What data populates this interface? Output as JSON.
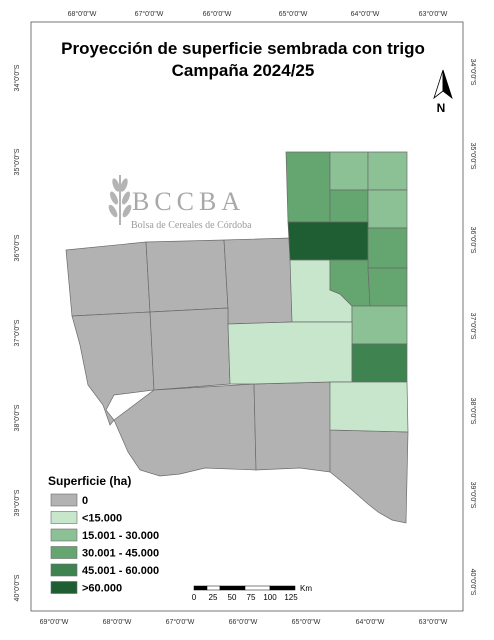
{
  "title": {
    "line1": "Proyección de superficie sembrada con trigo",
    "line2": "Campaña 2024/25"
  },
  "logo": {
    "name": "BCCBA",
    "subtitle": "Bolsa de Cereales de Córdoba"
  },
  "north_arrow": {
    "label": "N"
  },
  "graticule": {
    "top_labels": [
      "68°0'0\"W",
      "67°0'0\"W",
      "66°0'0\"W",
      "65°0'0\"W",
      "64°0'0\"W",
      "63°0'0\"W"
    ],
    "bottom_labels": [
      "69°0'0\"W",
      "68°0'0\"W",
      "67°0'0\"W",
      "66°0'0\"W",
      "65°0'0\"W",
      "64°0'0\"W",
      "63°0'0\"W"
    ],
    "left_labels": [
      "34°0'0\"S",
      "35°0'0\"S",
      "36°0'0\"S",
      "37°0'0\"S",
      "38°0'0\"S",
      "39°0'0\"S",
      "40°0'0\"S"
    ],
    "right_labels": [
      "34°0'0\"S",
      "35°0'0\"S",
      "36°0'0\"S",
      "37°0'0\"S",
      "38°0'0\"S",
      "39°0'0\"S",
      "40°0'0\"S"
    ]
  },
  "legend": {
    "title": "Superficie (ha)",
    "classes": [
      {
        "label": "0",
        "color": "#b2b2b2"
      },
      {
        "label": "<15.000",
        "color": "#c7e6cc"
      },
      {
        "label": "15.001 - 30.000",
        "color": "#8cc196"
      },
      {
        "label": "30.001 - 45.000",
        "color": "#64a570"
      },
      {
        "label": "45.001 - 60.000",
        "color": "#3e8350"
      },
      {
        "label": ">60.000",
        "color": "#1f5e32"
      }
    ]
  },
  "scale_bar": {
    "unit": "Km",
    "labels": [
      "0",
      "25",
      "50",
      "75",
      "100",
      "125"
    ]
  },
  "departments": [
    {
      "id": "dept-chalileo-nw",
      "class": 0
    },
    {
      "id": "dept-north-center-1",
      "class": 0
    },
    {
      "id": "dept-north-center-2",
      "class": 0
    },
    {
      "id": "dept-west-1",
      "class": 0
    },
    {
      "id": "dept-center-1",
      "class": 0
    },
    {
      "id": "dept-south-1",
      "class": 0
    },
    {
      "id": "dept-south-2",
      "class": 0
    },
    {
      "id": "dept-south-3",
      "class": 0
    },
    {
      "id": "dept-south-east",
      "class": 0
    },
    {
      "id": "dept-ne-1",
      "class": 3
    },
    {
      "id": "dept-ne-2",
      "class": 2
    },
    {
      "id": "dept-ne-3",
      "class": 2
    },
    {
      "id": "dept-ne-4",
      "class": 3
    },
    {
      "id": "dept-ne-5",
      "class": 2
    },
    {
      "id": "dept-ne-6",
      "class": 5
    },
    {
      "id": "dept-ne-7",
      "class": 3
    },
    {
      "id": "dept-e-1",
      "class": 1
    },
    {
      "id": "dept-e-2",
      "class": 3
    },
    {
      "id": "dept-e-3",
      "class": 3
    },
    {
      "id": "dept-e-4",
      "class": 2
    },
    {
      "id": "dept-center-east",
      "class": 1
    },
    {
      "id": "dept-e-5",
      "class": 4
    },
    {
      "id": "dept-se-1",
      "class": 1
    }
  ]
}
